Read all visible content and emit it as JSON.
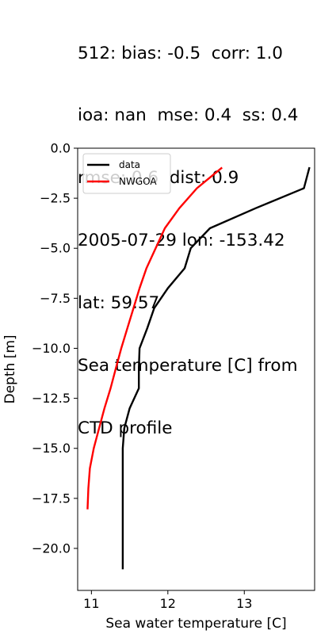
{
  "title_lines": [
    "512: bias: -0.5  corr: 1.0",
    "ioa: nan  mse: 0.4  ss: 0.4",
    "rmse: 0.6  dist: 0.9",
    "2005-07-29 lon: -153.42",
    "lat: 59.57",
    "Sea temperature [C] from",
    "CTD profile"
  ],
  "chart_data": {
    "type": "line",
    "xlabel": "Sea water temperature [C]",
    "ylabel": "Depth [m]",
    "xlim": [
      10.82,
      13.92
    ],
    "ylim": [
      -22.1,
      0.0
    ],
    "xticks": [
      11,
      12,
      13
    ],
    "yticks": [
      0.0,
      -2.5,
      -5.0,
      -7.5,
      -10.0,
      -12.5,
      -15.0,
      -17.5,
      -20.0
    ],
    "grid": false,
    "legend": "upper left",
    "series": [
      {
        "name": "data",
        "color": "#000000",
        "points": [
          [
            13.85,
            -1.0
          ],
          [
            13.78,
            -2.0
          ],
          [
            13.15,
            -3.0
          ],
          [
            12.55,
            -4.0
          ],
          [
            12.3,
            -5.0
          ],
          [
            12.22,
            -6.0
          ],
          [
            12.0,
            -7.0
          ],
          [
            11.82,
            -8.0
          ],
          [
            11.73,
            -9.0
          ],
          [
            11.63,
            -10.0
          ],
          [
            11.62,
            -11.0
          ],
          [
            11.62,
            -12.0
          ],
          [
            11.5,
            -13.0
          ],
          [
            11.43,
            -14.0
          ],
          [
            11.41,
            -15.0
          ],
          [
            11.41,
            -16.0
          ],
          [
            11.41,
            -17.0
          ],
          [
            11.41,
            -18.0
          ],
          [
            11.41,
            -19.0
          ],
          [
            11.41,
            -20.0
          ],
          [
            11.41,
            -21.0
          ]
        ]
      },
      {
        "name": "NWGOA",
        "color": "#ff0000",
        "points": [
          [
            12.7,
            -1.0
          ],
          [
            12.38,
            -2.0
          ],
          [
            12.15,
            -3.0
          ],
          [
            11.96,
            -4.0
          ],
          [
            11.84,
            -5.0
          ],
          [
            11.72,
            -6.0
          ],
          [
            11.63,
            -7.0
          ],
          [
            11.55,
            -8.0
          ],
          [
            11.47,
            -9.0
          ],
          [
            11.39,
            -10.0
          ],
          [
            11.32,
            -11.0
          ],
          [
            11.25,
            -12.0
          ],
          [
            11.17,
            -13.0
          ],
          [
            11.1,
            -14.0
          ],
          [
            11.03,
            -15.0
          ],
          [
            10.98,
            -16.0
          ],
          [
            10.96,
            -17.0
          ],
          [
            10.95,
            -18.0
          ]
        ]
      }
    ]
  }
}
